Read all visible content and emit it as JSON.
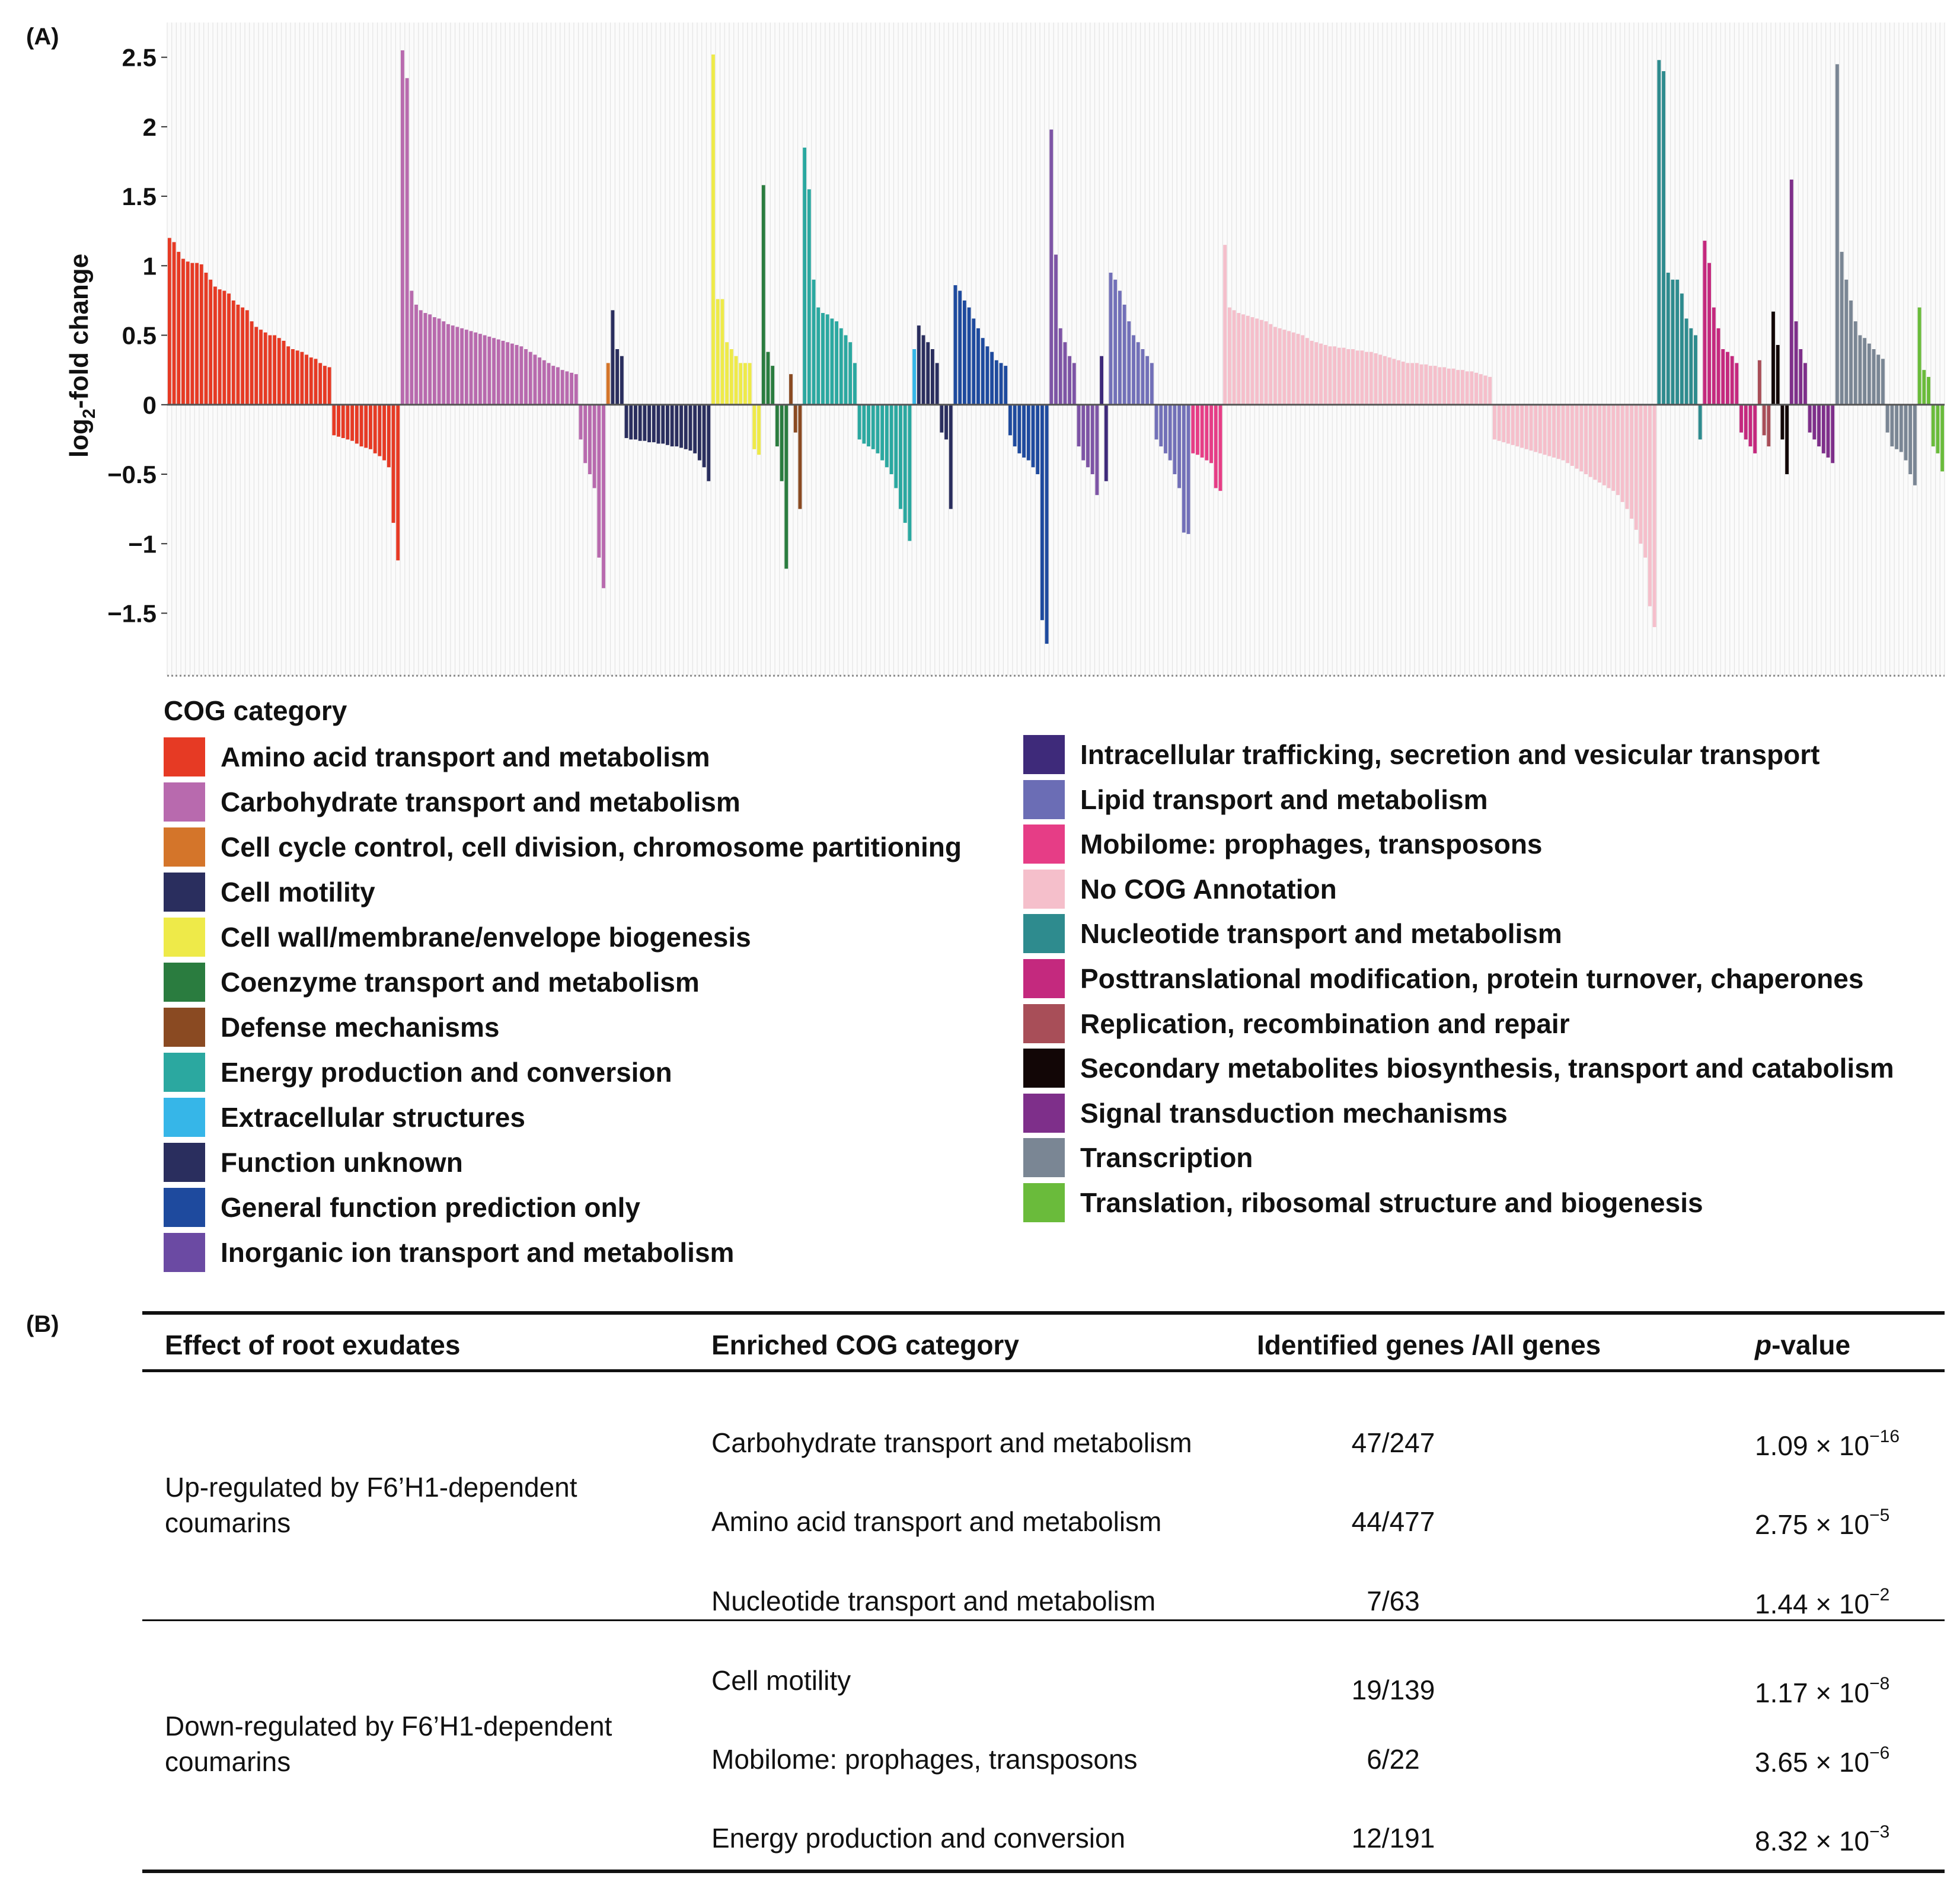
{
  "panel_a_label": "(A)",
  "panel_b_label": "(B)",
  "chart_data": {
    "type": "bar",
    "title": "",
    "xlabel": "",
    "ylabel": "log2-fold change",
    "ylabel_main": "log",
    "ylabel_sub": "2",
    "ylabel_rest": "-fold change",
    "ylim": [
      -1.95,
      2.75
    ],
    "yticks": [
      2.5,
      2,
      1.5,
      1,
      0.5,
      0,
      -0.5,
      -1,
      -1.5
    ],
    "ytick_labels": [
      "2.5",
      "2",
      "1.5",
      "1",
      "0.5",
      "0",
      "−0.5",
      "−1",
      "−1.5"
    ],
    "legend_title": "COG category",
    "series": [
      {
        "name": "Amino acid transport and metabolism",
        "color": "#e63a24",
        "values": [
          1.2,
          1.17,
          1.1,
          1.05,
          1.03,
          1.02,
          1.02,
          1.01,
          0.95,
          0.9,
          0.85,
          0.83,
          0.82,
          0.8,
          0.75,
          0.72,
          0.7,
          0.68,
          0.6,
          0.56,
          0.54,
          0.52,
          0.5,
          0.5,
          0.48,
          0.46,
          0.42,
          0.4,
          0.39,
          0.38,
          0.36,
          0.34,
          0.33,
          0.3,
          0.28,
          0.27,
          -0.22,
          -0.23,
          -0.24,
          -0.25,
          -0.26,
          -0.28,
          -0.3,
          -0.31,
          -0.32,
          -0.35,
          -0.37,
          -0.4,
          -0.45,
          -0.85,
          -1.12
        ]
      },
      {
        "name": "Carbohydrate transport and metabolism",
        "color": "#b86aae",
        "values": [
          2.55,
          2.35,
          0.82,
          0.72,
          0.68,
          0.66,
          0.65,
          0.63,
          0.62,
          0.6,
          0.58,
          0.57,
          0.56,
          0.55,
          0.54,
          0.53,
          0.52,
          0.51,
          0.5,
          0.49,
          0.48,
          0.47,
          0.46,
          0.45,
          0.44,
          0.43,
          0.42,
          0.4,
          0.38,
          0.36,
          0.34,
          0.32,
          0.3,
          0.28,
          0.27,
          0.25,
          0.24,
          0.23,
          0.22,
          -0.25,
          -0.42,
          -0.5,
          -0.6,
          -1.1,
          -1.32
        ]
      },
      {
        "name": "Cell cycle control, cell division, chromosome partitioning",
        "color": "#d4752a",
        "values": [
          0.3
        ]
      },
      {
        "name": "Cell motility",
        "color": "#2a2e5e",
        "values": [
          0.68,
          0.4,
          0.35,
          -0.24,
          -0.25,
          -0.25,
          -0.26,
          -0.26,
          -0.27,
          -0.27,
          -0.28,
          -0.28,
          -0.29,
          -0.3,
          -0.3,
          -0.31,
          -0.32,
          -0.33,
          -0.35,
          -0.4,
          -0.45,
          -0.55
        ]
      },
      {
        "name": "Cell wall/membrane/envelope biogenesis",
        "color": "#eeea49",
        "values": [
          2.52,
          0.76,
          0.76,
          0.45,
          0.4,
          0.35,
          0.3,
          0.3,
          0.3,
          -0.32,
          -0.36
        ]
      },
      {
        "name": "Coenzyme transport and metabolism",
        "color": "#2a7c3f",
        "values": [
          1.58,
          0.38,
          0.28,
          -0.3,
          -0.55,
          -1.18
        ]
      },
      {
        "name": "Defense mechanisms",
        "color": "#8a4a22",
        "values": [
          0.22,
          -0.2,
          -0.75
        ]
      },
      {
        "name": "Energy production and conversion",
        "color": "#2ba8a0",
        "values": [
          1.85,
          1.55,
          0.9,
          0.7,
          0.66,
          0.65,
          0.62,
          0.6,
          0.55,
          0.5,
          0.45,
          0.3,
          -0.25,
          -0.28,
          -0.3,
          -0.32,
          -0.35,
          -0.4,
          -0.45,
          -0.5,
          -0.6,
          -0.75,
          -0.85,
          -0.98
        ]
      },
      {
        "name": "Extracellular structures",
        "color": "#36b6e8",
        "values": [
          0.4
        ]
      },
      {
        "name": "Function unknown",
        "color": "#2a2e5e",
        "values": [
          0.57,
          0.5,
          0.45,
          0.4,
          0.3,
          -0.2,
          -0.25,
          -0.75
        ]
      },
      {
        "name": "General function prediction only",
        "color": "#1e4a9e",
        "values": [
          0.86,
          0.82,
          0.75,
          0.7,
          0.62,
          0.55,
          0.48,
          0.42,
          0.38,
          0.32,
          0.3,
          0.28,
          -0.22,
          -0.3,
          -0.35,
          -0.38,
          -0.4,
          -0.45,
          -0.5,
          -1.55,
          -1.72
        ]
      },
      {
        "name": "Inorganic ion transport and metabolism",
        "color": "#7d54a5",
        "values": [
          1.98,
          1.08,
          0.55,
          0.45,
          0.35,
          0.3,
          -0.3,
          -0.4,
          -0.45,
          -0.5,
          -0.65
        ]
      },
      {
        "name": "Intracellular trafficking, secretion and vesicular transport",
        "color": "#3e2a7a",
        "values": [
          0.35,
          -0.55
        ]
      },
      {
        "name": "Lipid transport and metabolism",
        "color": "#7270b8",
        "values": [
          0.95,
          0.9,
          0.82,
          0.72,
          0.6,
          0.5,
          0.45,
          0.4,
          0.35,
          0.3,
          -0.25,
          -0.3,
          -0.35,
          -0.4,
          -0.5,
          -0.6,
          -0.92,
          -0.93
        ]
      },
      {
        "name": "Mobilome: prophages, transposons",
        "color": "#e63d86",
        "values": [
          -0.35,
          -0.36,
          -0.38,
          -0.4,
          -0.42,
          -0.6,
          -0.62
        ]
      },
      {
        "name": "No COG Annotation",
        "color": "#f5bfcb",
        "values": [
          1.15,
          0.7,
          0.68,
          0.66,
          0.65,
          0.64,
          0.63,
          0.62,
          0.61,
          0.6,
          0.58,
          0.56,
          0.55,
          0.54,
          0.53,
          0.52,
          0.51,
          0.5,
          0.48,
          0.46,
          0.45,
          0.44,
          0.43,
          0.42,
          0.42,
          0.41,
          0.41,
          0.4,
          0.4,
          0.39,
          0.39,
          0.38,
          0.38,
          0.37,
          0.36,
          0.35,
          0.34,
          0.33,
          0.32,
          0.31,
          0.3,
          0.3,
          0.3,
          0.29,
          0.29,
          0.28,
          0.28,
          0.27,
          0.27,
          0.26,
          0.26,
          0.25,
          0.25,
          0.24,
          0.24,
          0.23,
          0.22,
          0.21,
          0.2,
          -0.25,
          -0.26,
          -0.27,
          -0.28,
          -0.29,
          -0.3,
          -0.31,
          -0.32,
          -0.33,
          -0.34,
          -0.35,
          -0.36,
          -0.37,
          -0.38,
          -0.39,
          -0.4,
          -0.42,
          -0.44,
          -0.46,
          -0.48,
          -0.5,
          -0.52,
          -0.54,
          -0.56,
          -0.58,
          -0.6,
          -0.62,
          -0.65,
          -0.7,
          -0.75,
          -0.82,
          -0.9,
          -1.0,
          -1.1,
          -1.45,
          -1.6
        ]
      },
      {
        "name": "Nucleotide transport and metabolism",
        "color": "#2e8b8e",
        "values": [
          2.48,
          2.4,
          0.95,
          0.9,
          0.9,
          0.8,
          0.62,
          0.55,
          0.5,
          -0.25
        ]
      },
      {
        "name": "Posttranslational modification, protein turnover, chaperones",
        "color": "#c4297e",
        "values": [
          1.18,
          1.02,
          0.7,
          0.55,
          0.4,
          0.38,
          0.35,
          0.3,
          -0.2,
          -0.25,
          -0.3,
          -0.35
        ]
      },
      {
        "name": "Replication, recombination and repair",
        "color": "#a84e58",
        "values": [
          0.32,
          -0.22,
          -0.3
        ]
      },
      {
        "name": "Secondary metabolites biosynthesis, transport and catabolism",
        "color": "#120606",
        "values": [
          0.67,
          0.43,
          -0.25,
          -0.5
        ]
      },
      {
        "name": "Signal transduction mechanisms",
        "color": "#7e2f8a",
        "values": [
          1.62,
          0.6,
          0.4,
          0.3,
          -0.2,
          -0.25,
          -0.3,
          -0.35,
          -0.38,
          -0.42
        ]
      },
      {
        "name": "Transcription",
        "color": "#7a8694",
        "values": [
          2.45,
          1.1,
          0.9,
          0.75,
          0.6,
          0.5,
          0.48,
          0.44,
          0.4,
          0.36,
          0.33,
          -0.2,
          -0.3,
          -0.32,
          -0.34,
          -0.4,
          -0.5,
          -0.58
        ]
      },
      {
        "name": "Translation, ribosomal structure and biogenesis",
        "color": "#6abb3b",
        "values": [
          0.7,
          0.25,
          0.2,
          -0.3,
          -0.35,
          -0.48
        ]
      }
    ],
    "legend_swatch_colors": [
      "#e63a24",
      "#b86aae",
      "#d4752a",
      "#2a2e5e",
      "#eeea49",
      "#2a7c3f",
      "#8a4a22",
      "#2ba8a0",
      "#36b6e8",
      "#2a2e5e",
      "#1e4a9e",
      "#6b4aa3",
      "#3e2a7a",
      "#6b6db5",
      "#e63d86",
      "#f5bfcb",
      "#2e8b8e",
      "#c4297e",
      "#a84e58",
      "#120606",
      "#7e2f8a",
      "#7a8694",
      "#6abb3b"
    ],
    "legend_columns": [
      12,
      11
    ]
  },
  "table": {
    "headers": [
      "Effect of root exudates",
      "Enriched COG category",
      "Identified genes /All genes",
      "p",
      "-value"
    ],
    "groups": [
      {
        "effect_line1": "Up-regulated by F6’H1-dependent",
        "effect_line2": "coumarins",
        "rows": [
          {
            "category": "Carbohydrate transport and metabolism",
            "genes": "47/247",
            "p_base": "1.09 × 10",
            "p_exp": "−16"
          },
          {
            "category": "Amino acid transport and metabolism",
            "genes": "44/477",
            "p_base": "2.75 × 10",
            "p_exp": "−5"
          },
          {
            "category": "Nucleotide transport and metabolism",
            "genes": "7/63",
            "p_base": "1.44 × 10",
            "p_exp": "−2"
          }
        ]
      },
      {
        "effect_line1": "Down-regulated by F6’H1-dependent",
        "effect_line2": "coumarins",
        "rows": [
          {
            "category": "Cell motility",
            "genes": "19/139",
            "p_base": "1.17 × 10",
            "p_exp": "−8"
          },
          {
            "category": "Mobilome: prophages, transposons",
            "genes": "6/22",
            "p_base": "3.65 × 10",
            "p_exp": "−6"
          },
          {
            "category": "Energy production and conversion",
            "genes": "12/191",
            "p_base": "8.32 × 10",
            "p_exp": "−3"
          }
        ]
      }
    ]
  }
}
